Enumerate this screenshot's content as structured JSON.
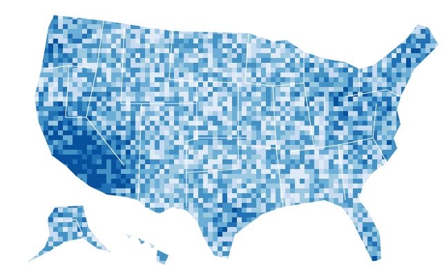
{
  "chart_data": {
    "type": "choropleth",
    "colors": [
      "#deebf7",
      "#c6dbef",
      "#9ecae1",
      "#6baed6",
      "#4292c6",
      "#2171b5",
      "#08519c"
    ]
  }
}
